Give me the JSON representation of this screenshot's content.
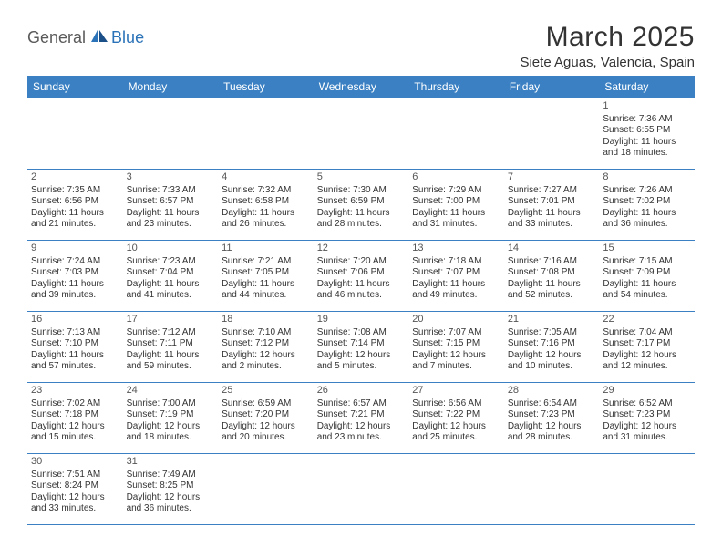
{
  "logo": {
    "part1": "General",
    "part2": "Blue"
  },
  "title": "March 2025",
  "location": "Siete Aguas, Valencia, Spain",
  "colors": {
    "header_bg": "#3a80c3",
    "header_text": "#ffffff",
    "border": "#3a80c3",
    "logo_gray": "#5a5a5a",
    "logo_blue": "#2b73b8",
    "text": "#333333"
  },
  "weekdays": [
    "Sunday",
    "Monday",
    "Tuesday",
    "Wednesday",
    "Thursday",
    "Friday",
    "Saturday"
  ],
  "weeks": [
    [
      null,
      null,
      null,
      null,
      null,
      null,
      {
        "n": "1",
        "sr": "Sunrise: 7:36 AM",
        "ss": "Sunset: 6:55 PM",
        "dl": "Daylight: 11 hours and 18 minutes."
      }
    ],
    [
      {
        "n": "2",
        "sr": "Sunrise: 7:35 AM",
        "ss": "Sunset: 6:56 PM",
        "dl": "Daylight: 11 hours and 21 minutes."
      },
      {
        "n": "3",
        "sr": "Sunrise: 7:33 AM",
        "ss": "Sunset: 6:57 PM",
        "dl": "Daylight: 11 hours and 23 minutes."
      },
      {
        "n": "4",
        "sr": "Sunrise: 7:32 AM",
        "ss": "Sunset: 6:58 PM",
        "dl": "Daylight: 11 hours and 26 minutes."
      },
      {
        "n": "5",
        "sr": "Sunrise: 7:30 AM",
        "ss": "Sunset: 6:59 PM",
        "dl": "Daylight: 11 hours and 28 minutes."
      },
      {
        "n": "6",
        "sr": "Sunrise: 7:29 AM",
        "ss": "Sunset: 7:00 PM",
        "dl": "Daylight: 11 hours and 31 minutes."
      },
      {
        "n": "7",
        "sr": "Sunrise: 7:27 AM",
        "ss": "Sunset: 7:01 PM",
        "dl": "Daylight: 11 hours and 33 minutes."
      },
      {
        "n": "8",
        "sr": "Sunrise: 7:26 AM",
        "ss": "Sunset: 7:02 PM",
        "dl": "Daylight: 11 hours and 36 minutes."
      }
    ],
    [
      {
        "n": "9",
        "sr": "Sunrise: 7:24 AM",
        "ss": "Sunset: 7:03 PM",
        "dl": "Daylight: 11 hours and 39 minutes."
      },
      {
        "n": "10",
        "sr": "Sunrise: 7:23 AM",
        "ss": "Sunset: 7:04 PM",
        "dl": "Daylight: 11 hours and 41 minutes."
      },
      {
        "n": "11",
        "sr": "Sunrise: 7:21 AM",
        "ss": "Sunset: 7:05 PM",
        "dl": "Daylight: 11 hours and 44 minutes."
      },
      {
        "n": "12",
        "sr": "Sunrise: 7:20 AM",
        "ss": "Sunset: 7:06 PM",
        "dl": "Daylight: 11 hours and 46 minutes."
      },
      {
        "n": "13",
        "sr": "Sunrise: 7:18 AM",
        "ss": "Sunset: 7:07 PM",
        "dl": "Daylight: 11 hours and 49 minutes."
      },
      {
        "n": "14",
        "sr": "Sunrise: 7:16 AM",
        "ss": "Sunset: 7:08 PM",
        "dl": "Daylight: 11 hours and 52 minutes."
      },
      {
        "n": "15",
        "sr": "Sunrise: 7:15 AM",
        "ss": "Sunset: 7:09 PM",
        "dl": "Daylight: 11 hours and 54 minutes."
      }
    ],
    [
      {
        "n": "16",
        "sr": "Sunrise: 7:13 AM",
        "ss": "Sunset: 7:10 PM",
        "dl": "Daylight: 11 hours and 57 minutes."
      },
      {
        "n": "17",
        "sr": "Sunrise: 7:12 AM",
        "ss": "Sunset: 7:11 PM",
        "dl": "Daylight: 11 hours and 59 minutes."
      },
      {
        "n": "18",
        "sr": "Sunrise: 7:10 AM",
        "ss": "Sunset: 7:12 PM",
        "dl": "Daylight: 12 hours and 2 minutes."
      },
      {
        "n": "19",
        "sr": "Sunrise: 7:08 AM",
        "ss": "Sunset: 7:14 PM",
        "dl": "Daylight: 12 hours and 5 minutes."
      },
      {
        "n": "20",
        "sr": "Sunrise: 7:07 AM",
        "ss": "Sunset: 7:15 PM",
        "dl": "Daylight: 12 hours and 7 minutes."
      },
      {
        "n": "21",
        "sr": "Sunrise: 7:05 AM",
        "ss": "Sunset: 7:16 PM",
        "dl": "Daylight: 12 hours and 10 minutes."
      },
      {
        "n": "22",
        "sr": "Sunrise: 7:04 AM",
        "ss": "Sunset: 7:17 PM",
        "dl": "Daylight: 12 hours and 12 minutes."
      }
    ],
    [
      {
        "n": "23",
        "sr": "Sunrise: 7:02 AM",
        "ss": "Sunset: 7:18 PM",
        "dl": "Daylight: 12 hours and 15 minutes."
      },
      {
        "n": "24",
        "sr": "Sunrise: 7:00 AM",
        "ss": "Sunset: 7:19 PM",
        "dl": "Daylight: 12 hours and 18 minutes."
      },
      {
        "n": "25",
        "sr": "Sunrise: 6:59 AM",
        "ss": "Sunset: 7:20 PM",
        "dl": "Daylight: 12 hours and 20 minutes."
      },
      {
        "n": "26",
        "sr": "Sunrise: 6:57 AM",
        "ss": "Sunset: 7:21 PM",
        "dl": "Daylight: 12 hours and 23 minutes."
      },
      {
        "n": "27",
        "sr": "Sunrise: 6:56 AM",
        "ss": "Sunset: 7:22 PM",
        "dl": "Daylight: 12 hours and 25 minutes."
      },
      {
        "n": "28",
        "sr": "Sunrise: 6:54 AM",
        "ss": "Sunset: 7:23 PM",
        "dl": "Daylight: 12 hours and 28 minutes."
      },
      {
        "n": "29",
        "sr": "Sunrise: 6:52 AM",
        "ss": "Sunset: 7:23 PM",
        "dl": "Daylight: 12 hours and 31 minutes."
      }
    ],
    [
      {
        "n": "30",
        "sr": "Sunrise: 7:51 AM",
        "ss": "Sunset: 8:24 PM",
        "dl": "Daylight: 12 hours and 33 minutes."
      },
      {
        "n": "31",
        "sr": "Sunrise: 7:49 AM",
        "ss": "Sunset: 8:25 PM",
        "dl": "Daylight: 12 hours and 36 minutes."
      },
      null,
      null,
      null,
      null,
      null
    ]
  ]
}
